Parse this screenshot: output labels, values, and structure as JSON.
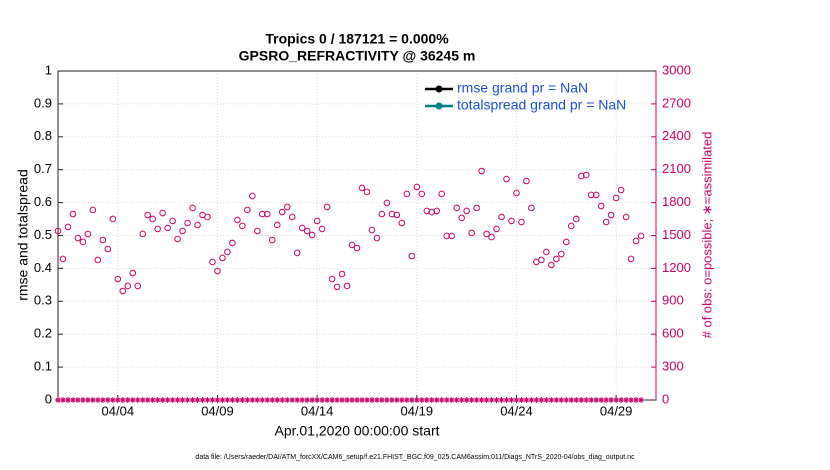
{
  "chart_data": {
    "type": "scatter",
    "title": "Tropics 0 / 187121 = 0.000%",
    "subtitle": "GPSRO_REFRACTIVITY @ 36245 m",
    "xlabel": "Apr.01,2020 00:00:00 start",
    "ylabel": "rmse and totalspread",
    "y2label": "# of obs: o=possible; ∗=assimilated",
    "footnote": "data file: /Users/raeder/DAI/ATM_forcXX/CAM6_setup/f.e21.FHIST_BGC.f09_025.CAM6assim.011/Diags_NTrS_2020-04/obs_diag_output.nc",
    "xlim": [
      0,
      30
    ],
    "xticks": [
      {
        "value": 3,
        "label": "04/04"
      },
      {
        "value": 8,
        "label": "04/09"
      },
      {
        "value": 13,
        "label": "04/14"
      },
      {
        "value": 18,
        "label": "04/19"
      },
      {
        "value": 23,
        "label": "04/24"
      },
      {
        "value": 28,
        "label": "04/29"
      }
    ],
    "ylim": [
      0,
      1
    ],
    "yticks": [
      0,
      0.1,
      0.2,
      0.3,
      0.4,
      0.5,
      0.6,
      0.7,
      0.8,
      0.9,
      1
    ],
    "y2lim": [
      0,
      3000
    ],
    "y2ticks": [
      0,
      300,
      600,
      900,
      1200,
      1500,
      1800,
      2100,
      2400,
      2700,
      3000
    ],
    "grid": true,
    "legend": "upper right",
    "legend_series": [
      {
        "name": "rmse grand pr = NaN",
        "color": "#000000"
      },
      {
        "name": "totalspread grand pr = NaN",
        "color": "#008080"
      }
    ],
    "x": [
      0,
      0.25,
      0.5,
      0.75,
      1,
      1.25,
      1.5,
      1.75,
      2,
      2.25,
      2.5,
      2.75,
      3,
      3.25,
      3.5,
      3.75,
      4,
      4.25,
      4.5,
      4.75,
      5,
      5.25,
      5.5,
      5.75,
      6,
      6.25,
      6.5,
      6.75,
      7,
      7.25,
      7.5,
      7.75,
      8,
      8.25,
      8.5,
      8.75,
      9,
      9.25,
      9.5,
      9.75,
      10,
      10.25,
      10.5,
      10.75,
      11,
      11.25,
      11.5,
      11.75,
      12,
      12.25,
      12.5,
      12.75,
      13,
      13.25,
      13.5,
      13.75,
      14,
      14.25,
      14.5,
      14.75,
      15,
      15.25,
      15.5,
      15.75,
      16,
      16.25,
      16.5,
      16.75,
      17,
      17.25,
      17.5,
      17.75,
      18,
      18.25,
      18.5,
      18.75,
      19,
      19.25,
      19.5,
      19.75,
      20,
      20.25,
      20.5,
      20.75,
      21,
      21.25,
      21.5,
      21.75,
      22,
      22.25,
      22.5,
      22.75,
      23,
      23.25,
      23.5,
      23.75,
      24,
      24.25,
      24.5,
      24.75,
      25,
      25.25,
      25.5,
      25.75,
      26,
      26.25,
      26.5,
      26.75,
      27,
      27.25,
      27.5,
      27.75,
      28,
      28.25,
      28.5,
      28.75,
      29,
      29.25
    ],
    "series": [
      {
        "name": "possible",
        "color": "#cc0066",
        "axis": "y2",
        "marker": "o",
        "values": [
          1541,
          1286,
          1578,
          1696,
          1477,
          1441,
          1514,
          1733,
          1277,
          1459,
          1377,
          1651,
          1103,
          994,
          1040,
          1158,
          1040,
          1514,
          1687,
          1651,
          1560,
          1705,
          1569,
          1633,
          1468,
          1541,
          1614,
          1751,
          1596,
          1687,
          1669,
          1259,
          1176,
          1295,
          1350,
          1432,
          1642,
          1587,
          1733,
          1861,
          1541,
          1696,
          1696,
          1459,
          1596,
          1714,
          1760,
          1669,
          1341,
          1569,
          1541,
          1505,
          1633,
          1560,
          1760,
          1103,
          1031,
          1149,
          1040,
          1414,
          1386,
          1934,
          1897,
          1550,
          1477,
          1696,
          1797,
          1696,
          1687,
          1614,
          1879,
          1313,
          1943,
          1879,
          1724,
          1714,
          1724,
          1879,
          1496,
          1496,
          1751,
          1660,
          1724,
          1523,
          1751,
          2088,
          1514,
          1486,
          1560,
          1669,
          2015,
          1633,
          1888,
          1623,
          1997,
          1751,
          1259,
          1277,
          1350,
          1231,
          1286,
          1331,
          1441,
          1587,
          1651,
          2042,
          2051,
          1870,
          1870,
          1769,
          1623,
          1687,
          1842,
          1915,
          1669,
          1286,
          1450,
          1496
        ]
      },
      {
        "name": "assimilated",
        "color": "#cc0066",
        "axis": "y2",
        "marker": "*",
        "values": [
          0,
          0,
          0,
          0,
          0,
          0,
          0,
          0,
          0,
          0,
          0,
          0,
          0,
          0,
          0,
          0,
          0,
          0,
          0,
          0,
          0,
          0,
          0,
          0,
          0,
          0,
          0,
          0,
          0,
          0,
          0,
          0,
          0,
          0,
          0,
          0,
          0,
          0,
          0,
          0,
          0,
          0,
          0,
          0,
          0,
          0,
          0,
          0,
          0,
          0,
          0,
          0,
          0,
          0,
          0,
          0,
          0,
          0,
          0,
          0,
          0,
          0,
          0,
          0,
          0,
          0,
          0,
          0,
          0,
          0,
          0,
          0,
          0,
          0,
          0,
          0,
          0,
          0,
          0,
          0,
          0,
          0,
          0,
          0,
          0,
          0,
          0,
          0,
          0,
          0,
          0,
          0,
          0,
          0,
          0,
          0,
          0,
          0,
          0,
          0,
          0,
          0,
          0,
          0,
          0,
          0,
          0,
          0,
          0,
          0,
          0,
          0,
          0,
          0,
          0,
          0,
          0,
          0
        ]
      }
    ]
  }
}
